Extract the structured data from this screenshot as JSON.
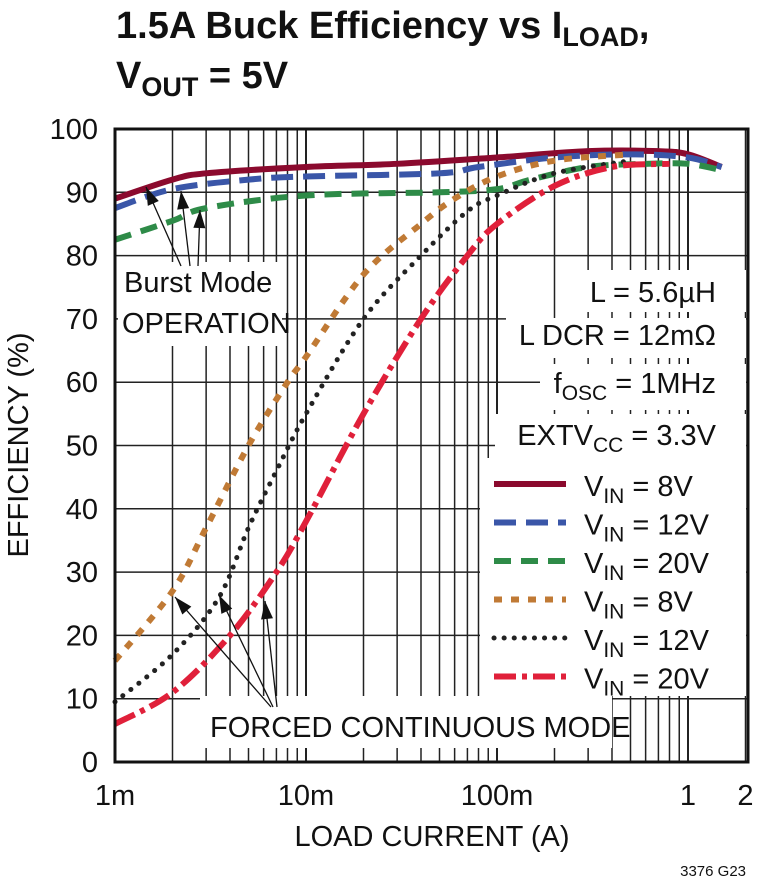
{
  "chart_data": {
    "type": "line",
    "title": {
      "line1_main": "1.5A Buck Efficiency vs I",
      "line1_sub": "LOAD",
      "line1_end": ",",
      "line2_main": "V",
      "line2_sub": "OUT",
      "line2_end": " = 5V"
    },
    "xlabel": "LOAD CURRENT  (A)",
    "ylabel": "EFFICIENCY (%)",
    "xscale": "log",
    "xlim": [
      0.001,
      2
    ],
    "ylim": [
      0,
      100
    ],
    "grid": true,
    "x_ticks": [
      {
        "v": 0.001,
        "label": "1m"
      },
      {
        "v": 0.01,
        "label": "10m"
      },
      {
        "v": 0.1,
        "label": "100m"
      },
      {
        "v": 1,
        "label": "1"
      },
      {
        "v": 2,
        "label": "2"
      }
    ],
    "y_ticks": [
      0,
      10,
      20,
      30,
      40,
      50,
      60,
      70,
      80,
      90,
      100
    ],
    "legend_placement": "bottom-right",
    "conditions": [
      {
        "main": "L = 5.6µH",
        "sub": "",
        "end": ""
      },
      {
        "main": "L DCR = 12mΩ",
        "sub": "",
        "end": ""
      },
      {
        "main": "f",
        "sub": "OSC",
        "end": " = 1MHz"
      },
      {
        "main": "EXTV",
        "sub": "CC",
        "end": " = 3.3V"
      }
    ],
    "annotations": {
      "burst_line1": "Burst Mode",
      "burst_line2": "OPERATION",
      "forced": "FORCED CONTINUOUS MODE"
    },
    "figure_id": "3376 G23",
    "series": [
      {
        "name_main": "V",
        "name_sub": "IN",
        "name_end": " = 8V",
        "color": "#8B0A2E",
        "style": "solid",
        "x": [
          0.001,
          0.002,
          0.003,
          0.01,
          0.03,
          0.1,
          0.3,
          0.7,
          1,
          1.5
        ],
        "y": [
          89,
          92,
          93,
          94,
          94.5,
          95.5,
          96.5,
          96.5,
          96,
          94
        ]
      },
      {
        "name_main": "V",
        "name_sub": "IN",
        "name_end": " = 12V",
        "color": "#3A56A8",
        "style": "long-dash",
        "x": [
          0.001,
          0.002,
          0.005,
          0.01,
          0.05,
          0.08,
          0.2,
          0.5,
          1,
          1.5
        ],
        "y": [
          87.5,
          90.5,
          92,
          92.5,
          93,
          94,
          95.5,
          96,
          95.5,
          94
        ]
      },
      {
        "name_main": "V",
        "name_sub": "IN",
        "name_end": " = 20V",
        "color": "#2E8B48",
        "style": "dash",
        "x": [
          0.001,
          0.002,
          0.003,
          0.01,
          0.05,
          0.1,
          0.15,
          0.3,
          0.6,
          1,
          1.5
        ],
        "y": [
          82.5,
          85.5,
          87.5,
          89.5,
          90,
          90.5,
          92,
          94,
          94.5,
          94.5,
          93.5
        ]
      },
      {
        "name_main": "V",
        "name_sub": "IN",
        "name_end": " = 8V",
        "color": "#C07A35",
        "style": "short-dash",
        "x": [
          0.001,
          0.002,
          0.003,
          0.005,
          0.008,
          0.01,
          0.02,
          0.04,
          0.06,
          0.1,
          0.2,
          0.5
        ],
        "y": [
          16,
          27,
          37,
          50,
          60,
          64,
          77,
          85,
          89,
          92.5,
          95,
          96
        ]
      },
      {
        "name_main": "V",
        "name_sub": "IN",
        "name_end": " = 12V",
        "color": "#222222",
        "style": "dotted",
        "x": [
          0.001,
          0.002,
          0.0035,
          0.005,
          0.007,
          0.01,
          0.02,
          0.04,
          0.07,
          0.1,
          0.2,
          0.5
        ],
        "y": [
          9.5,
          17,
          26,
          37,
          46,
          55,
          70,
          80,
          87,
          89.5,
          93,
          95
        ]
      },
      {
        "name_main": "V",
        "name_sub": "IN",
        "name_end": " = 20V",
        "color": "#E0203A",
        "style": "dash-dot",
        "x": [
          0.001,
          0.002,
          0.004,
          0.007,
          0.01,
          0.02,
          0.04,
          0.07,
          0.1,
          0.2,
          0.4,
          0.8
        ],
        "y": [
          6,
          11,
          20,
          30,
          38,
          55,
          70,
          80,
          85,
          91,
          94,
          94.5
        ]
      }
    ]
  }
}
